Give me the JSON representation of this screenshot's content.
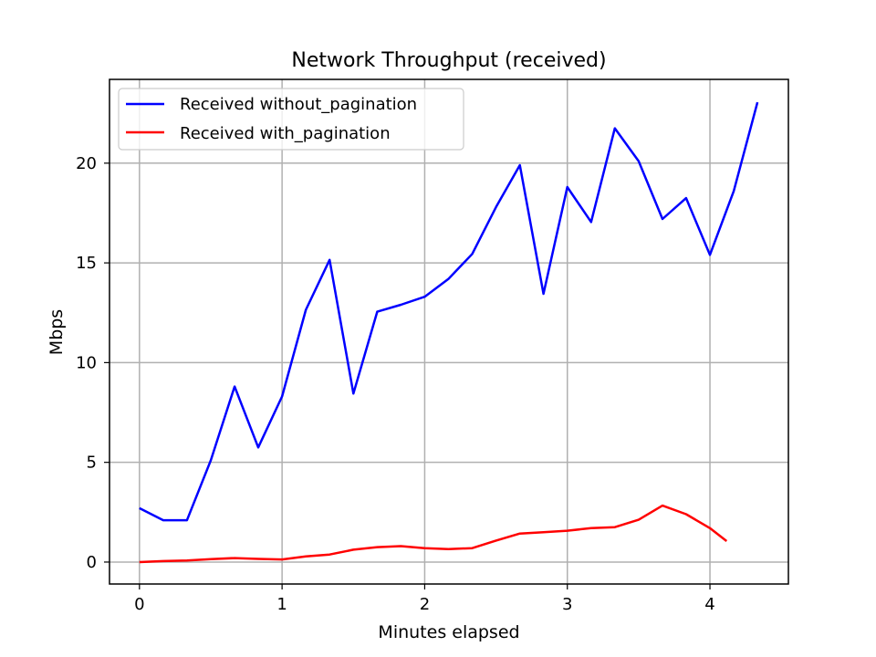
{
  "chart_data": {
    "type": "line",
    "title": "Network Throughput (received)",
    "xlabel": "Minutes elapsed",
    "ylabel": "Mbps",
    "xlim": [
      -0.21,
      4.55
    ],
    "ylim": [
      -1.1,
      24.2
    ],
    "xticks": [
      0,
      1,
      2,
      3,
      4
    ],
    "yticks": [
      0,
      5,
      10,
      15,
      20
    ],
    "grid": true,
    "legend_position": "top-left",
    "series": [
      {
        "name": "Received without_pagination",
        "color": "#0000ff",
        "x": [
          0,
          0.167,
          0.333,
          0.5,
          0.667,
          0.833,
          1.0,
          1.167,
          1.333,
          1.5,
          1.667,
          1.833,
          2.0,
          2.167,
          2.333,
          2.5,
          2.667,
          2.833,
          3.0,
          3.167,
          3.333,
          3.5,
          3.667,
          3.833,
          4.0,
          4.167,
          4.333
        ],
        "y": [
          2.7,
          2.1,
          2.1,
          5.1,
          8.8,
          5.75,
          8.3,
          12.65,
          15.15,
          8.45,
          12.55,
          12.9,
          13.3,
          14.2,
          15.45,
          17.8,
          19.9,
          13.45,
          18.8,
          17.05,
          21.75,
          20.1,
          17.2,
          18.25,
          15.4,
          18.6,
          23.05
        ]
      },
      {
        "name": "Received with_pagination",
        "color": "#ff0000",
        "x": [
          0,
          0.167,
          0.333,
          0.5,
          0.667,
          0.833,
          1.0,
          1.167,
          1.333,
          1.5,
          1.667,
          1.833,
          2.0,
          2.167,
          2.333,
          2.5,
          2.667,
          2.833,
          3.0,
          3.167,
          3.333,
          3.5,
          3.667,
          3.833,
          4.0,
          4.117
        ],
        "y": [
          0.0,
          0.05,
          0.08,
          0.15,
          0.2,
          0.16,
          0.13,
          0.28,
          0.38,
          0.62,
          0.75,
          0.8,
          0.7,
          0.65,
          0.7,
          1.08,
          1.43,
          1.5,
          1.57,
          1.7,
          1.75,
          2.12,
          2.83,
          2.4,
          1.7,
          1.05
        ]
      }
    ]
  }
}
